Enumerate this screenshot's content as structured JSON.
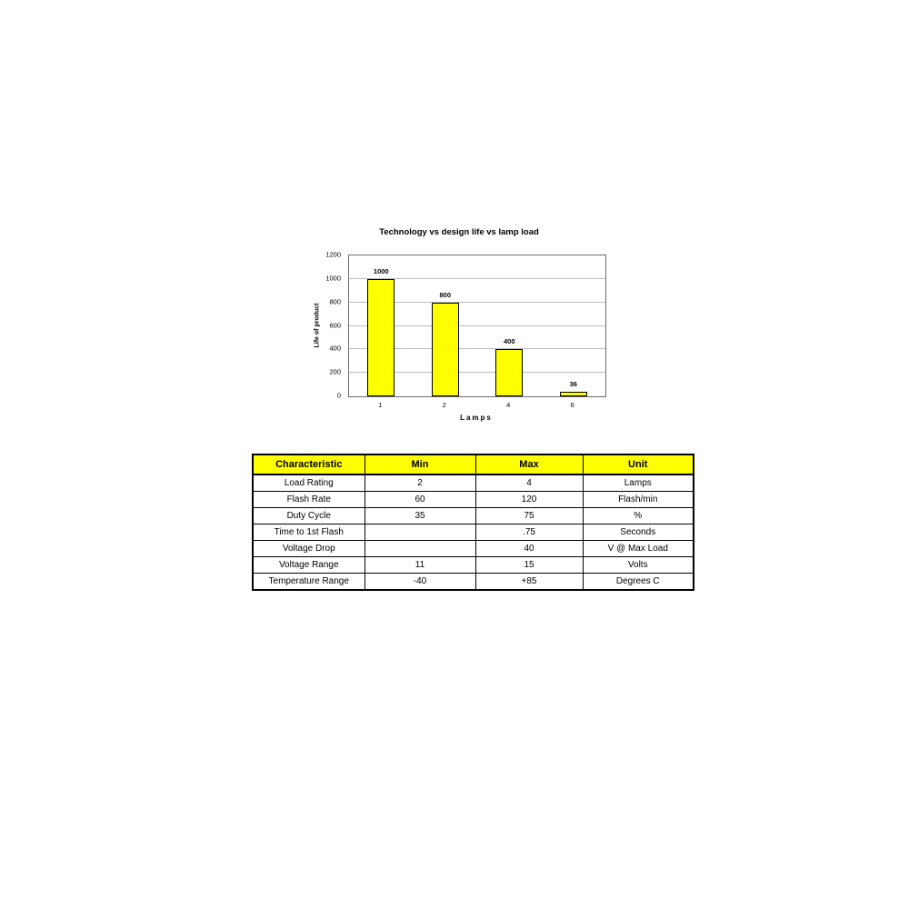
{
  "chart_data": {
    "type": "bar",
    "title": "Technology vs design life vs lamp load",
    "xlabel": "Lamps",
    "ylabel": "Life of product",
    "categories": [
      "1",
      "2",
      "4",
      "6"
    ],
    "values": [
      1000,
      800,
      400,
      36
    ],
    "data_labels": [
      "1000",
      "800",
      "400",
      "36"
    ],
    "ylim": [
      0,
      1200
    ],
    "yticks": [
      0,
      200,
      400,
      600,
      800,
      1000,
      1200
    ],
    "grid": true,
    "legend": "none",
    "bar_color": "#FFFF00",
    "bar_border_color": "#000000"
  },
  "spec_table": {
    "header_bg": "#FFFF00",
    "headers": [
      "Characteristic",
      "Min",
      "Max",
      "Unit"
    ],
    "rows": [
      [
        "Load Rating",
        "2",
        "4",
        "Lamps"
      ],
      [
        "Flash Rate",
        "60",
        "120",
        "Flash/min"
      ],
      [
        "Duty Cycle",
        "35",
        "75",
        "%"
      ],
      [
        "Time to 1st Flash",
        "",
        ".75",
        "Seconds"
      ],
      [
        "Voltage Drop",
        "",
        "40",
        "V @ Max Load"
      ],
      [
        "Voltage Range",
        "11",
        "15",
        "Volts"
      ],
      [
        "Temperature Range",
        "-40",
        "+85",
        "Degrees C"
      ]
    ]
  }
}
